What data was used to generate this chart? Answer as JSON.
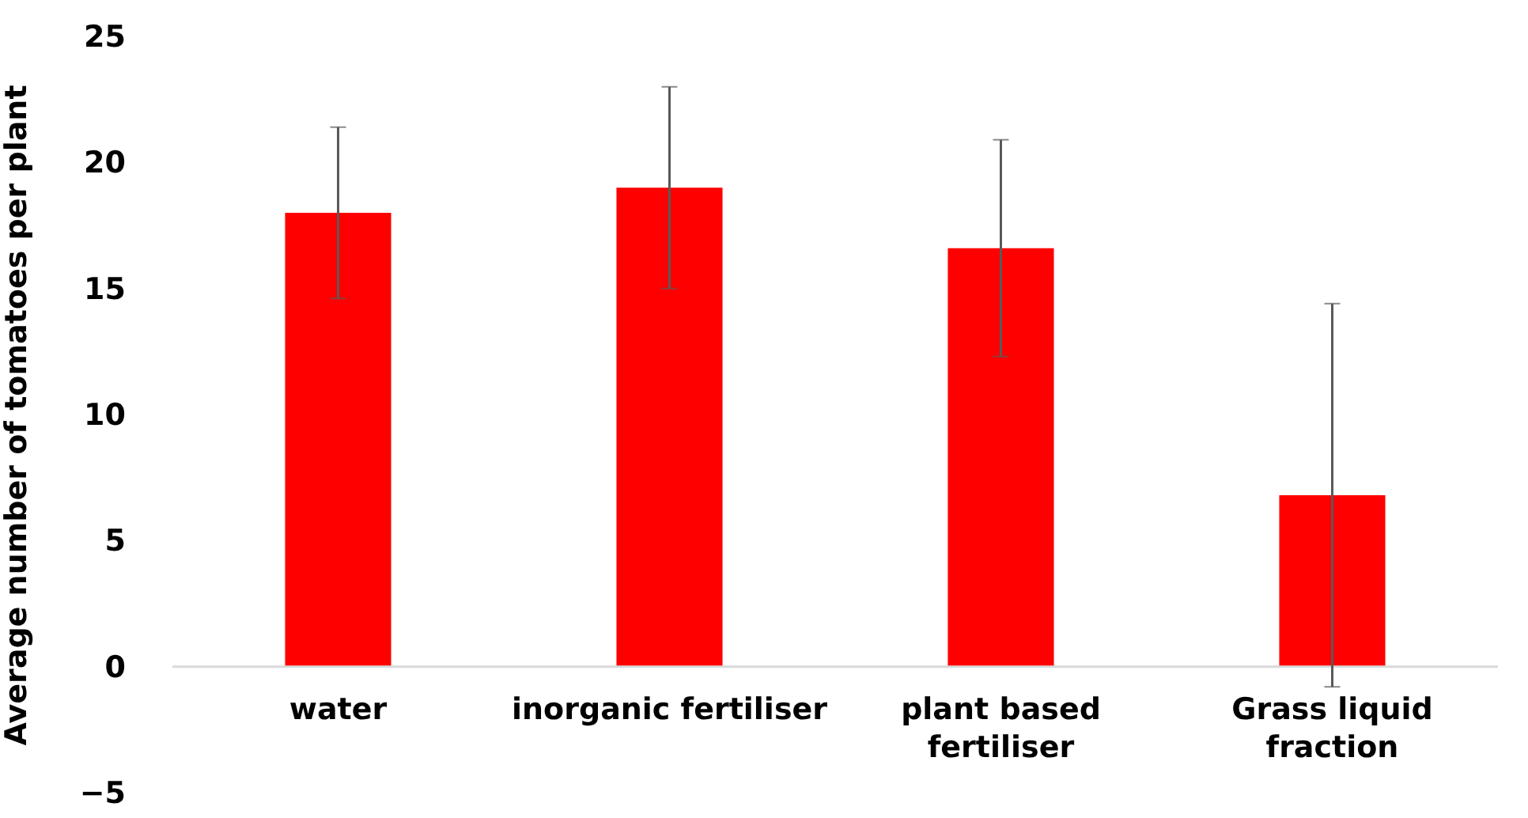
{
  "chart_data": {
    "type": "bar",
    "ylabel": "Average number of tomatoes per plant",
    "categories": [
      "water",
      "inorganic fertiliser",
      "plant based fertiliser",
      "Grass liquid fraction"
    ],
    "values": [
      18,
      19,
      16.6,
      6.8
    ],
    "errors": [
      3.4,
      4,
      4.3,
      7.6
    ],
    "color": "#ff0000",
    "ylim": [
      -5,
      25
    ],
    "yticks": [
      -5,
      0,
      5,
      10,
      15,
      20,
      25
    ],
    "grid": false
  }
}
